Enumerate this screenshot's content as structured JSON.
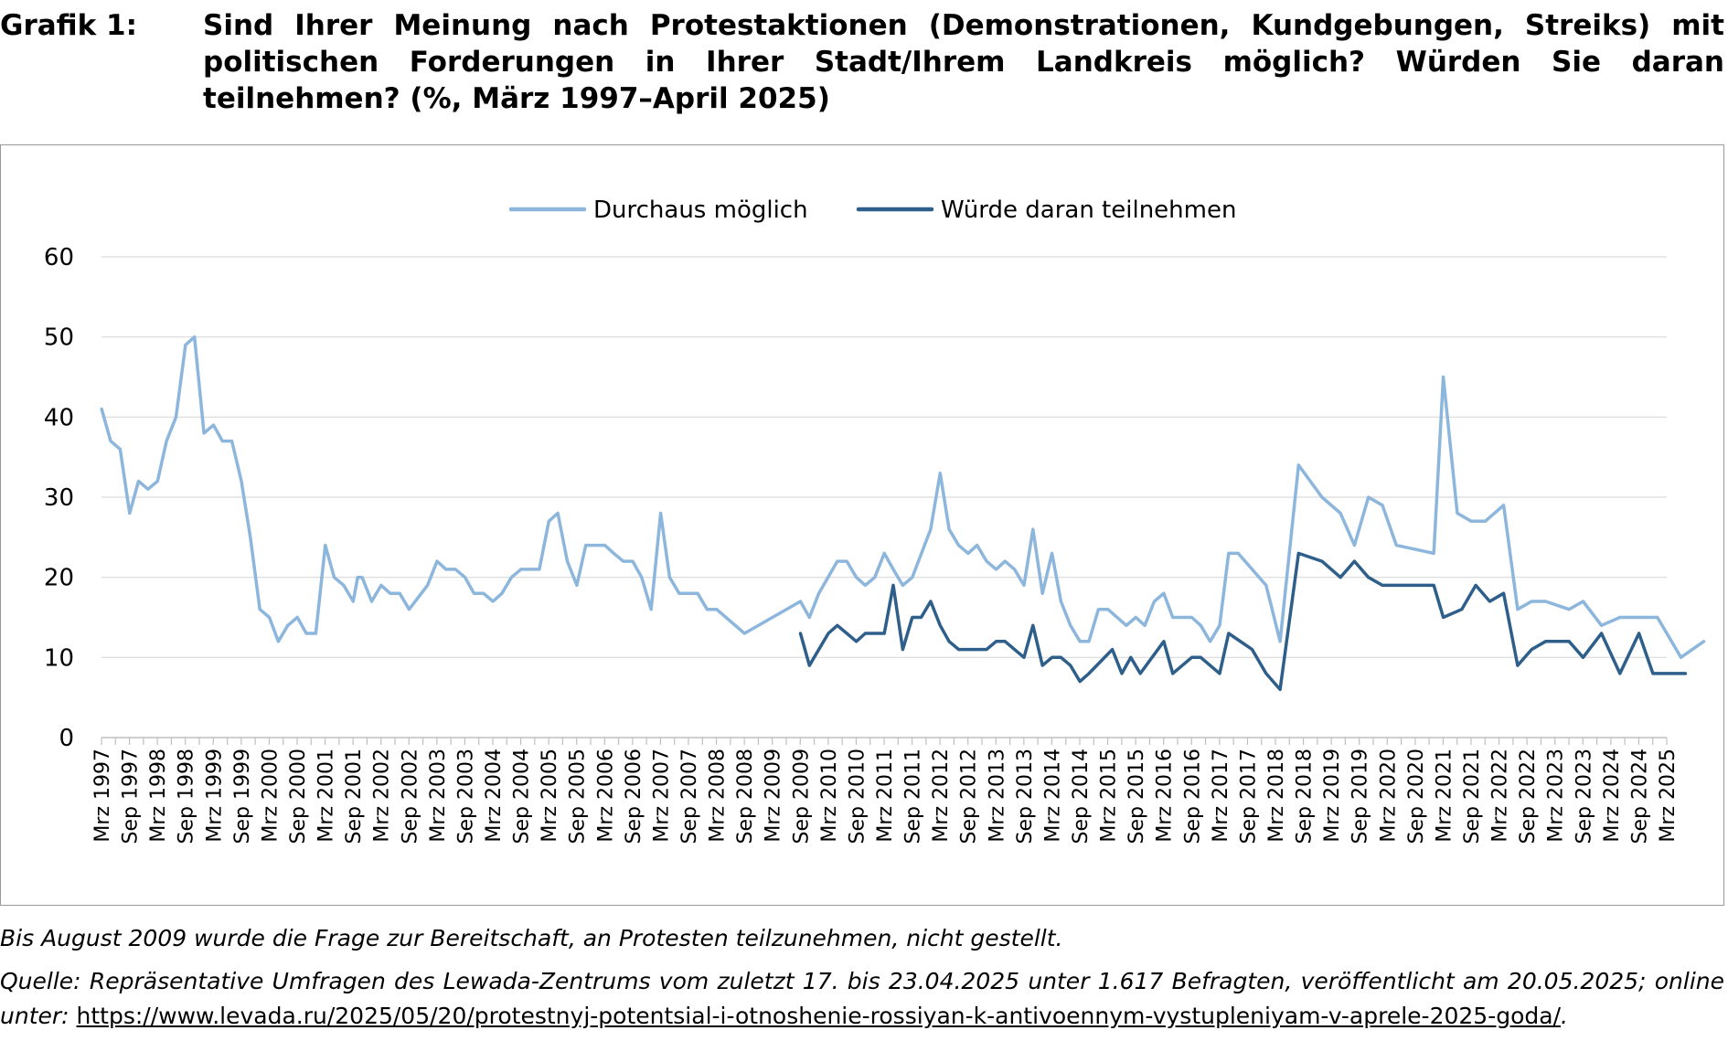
{
  "header": {
    "label": "Grafik 1:",
    "title": "Sind Ihrer Meinung nach Protestaktionen (Demonstrationen, Kundgebungen, Streiks) mit politischen Forderungen in Ihrer Stadt/Ihrem Landkreis möglich? Würden Sie daran teilnehmen? (%, März 1997–April 2025)"
  },
  "footer": {
    "note": "Bis August 2009 wurde die Frage zur Bereitschaft, an Protesten teilzunehmen, nicht gestellt.",
    "source_prefix": "Quelle: Repräsentative Umfragen des Lewada-Zentrums vom zuletzt 17. bis 23.04.2025 unter 1.617 Befragten, veröffentlicht am 20.05.2025; online unter: ",
    "source_link": "https://www.levada.ru/2025/05/20/protestnyj-potentsial-i-otnoshenie-rossiyan-k-antivoennym-vystupleniyam-v-aprele-2025-goda/",
    "source_suffix": "."
  },
  "chart_data": {
    "type": "line",
    "title": "",
    "xlabel": "",
    "ylabel": "",
    "ylim": [
      0,
      60
    ],
    "yticks": [
      0,
      10,
      20,
      30,
      40,
      50,
      60
    ],
    "grid": true,
    "legend_position": "top-center",
    "x_domain": [
      1997.167,
      2025.167
    ],
    "tick_labels": [
      "Mrz 1997",
      "Sep 1997",
      "Mrz 1998",
      "Sep 1998",
      "Mrz 1999",
      "Sep 1999",
      "Mrz 2000",
      "Sep 2000",
      "Mrz 2001",
      "Sep 2001",
      "Mrz 2002",
      "Sep 2002",
      "Mrz 2003",
      "Sep 2003",
      "Mrz 2004",
      "Sep 2004",
      "Mrz 2005",
      "Sep 2005",
      "Mrz 2006",
      "Sep 2006",
      "Mrz 2007",
      "Sep 2007",
      "Mrz 2008",
      "Sep 2008",
      "Mrz 2009",
      "Sep 2009",
      "Mrz 2010",
      "Sep 2010",
      "Mrz 2011",
      "Sep 2011",
      "Mrz 2012",
      "Sep 2012",
      "Mrz 2013",
      "Sep 2013",
      "Mrz 2014",
      "Sep 2014",
      "Mrz 2015",
      "Sep 2015",
      "Mrz 2016",
      "Sep 2016",
      "Mrz 2017",
      "Sep 2017",
      "Mrz 2018",
      "Sep 2018",
      "Mrz 2019",
      "Sep 2019",
      "Mrz 2020",
      "Sep 2020",
      "Mrz 2021",
      "Sep 2021",
      "Mrz 2022",
      "Sep 2022",
      "Mrz 2023",
      "Sep 2023",
      "Mrz 2024",
      "Sep 2024",
      "Mrz 2025"
    ],
    "series": [
      {
        "name": "Durchaus möglich",
        "color": "#8db6dc",
        "points": [
          [
            1997.17,
            41
          ],
          [
            1997.33,
            37
          ],
          [
            1997.5,
            36
          ],
          [
            1997.67,
            28
          ],
          [
            1997.83,
            32
          ],
          [
            1998.0,
            31
          ],
          [
            1998.17,
            32
          ],
          [
            1998.33,
            37
          ],
          [
            1998.5,
            40
          ],
          [
            1998.67,
            49
          ],
          [
            1998.83,
            50
          ],
          [
            1999.0,
            38
          ],
          [
            1999.17,
            39
          ],
          [
            1999.33,
            37
          ],
          [
            1999.5,
            37
          ],
          [
            1999.67,
            32
          ],
          [
            1999.83,
            25
          ],
          [
            2000.0,
            16
          ],
          [
            2000.17,
            15
          ],
          [
            2000.33,
            12
          ],
          [
            2000.5,
            14
          ],
          [
            2000.67,
            15
          ],
          [
            2000.83,
            13
          ],
          [
            2001.0,
            13
          ],
          [
            2001.17,
            24
          ],
          [
            2001.33,
            20
          ],
          [
            2001.5,
            19
          ],
          [
            2001.67,
            17
          ],
          [
            2001.75,
            20
          ],
          [
            2001.83,
            20
          ],
          [
            2002.0,
            17
          ],
          [
            2002.17,
            19
          ],
          [
            2002.33,
            18
          ],
          [
            2002.5,
            18
          ],
          [
            2002.67,
            16
          ],
          [
            2003.0,
            19
          ],
          [
            2003.17,
            22
          ],
          [
            2003.33,
            21
          ],
          [
            2003.5,
            21
          ],
          [
            2003.67,
            20
          ],
          [
            2003.83,
            18
          ],
          [
            2004.0,
            18
          ],
          [
            2004.17,
            17
          ],
          [
            2004.33,
            18
          ],
          [
            2004.5,
            20
          ],
          [
            2004.67,
            21
          ],
          [
            2004.83,
            21
          ],
          [
            2005.0,
            21
          ],
          [
            2005.17,
            27
          ],
          [
            2005.33,
            28
          ],
          [
            2005.5,
            22
          ],
          [
            2005.67,
            19
          ],
          [
            2005.83,
            24
          ],
          [
            2006.0,
            24
          ],
          [
            2006.17,
            24
          ],
          [
            2006.33,
            23
          ],
          [
            2006.5,
            22
          ],
          [
            2006.67,
            22
          ],
          [
            2006.83,
            20
          ],
          [
            2007.0,
            16
          ],
          [
            2007.17,
            28
          ],
          [
            2007.33,
            20
          ],
          [
            2007.5,
            18
          ],
          [
            2007.67,
            18
          ],
          [
            2007.83,
            18
          ],
          [
            2008.0,
            16
          ],
          [
            2008.17,
            16
          ],
          [
            2008.67,
            13
          ],
          [
            2009.67,
            17
          ],
          [
            2009.83,
            15
          ],
          [
            2010.0,
            18
          ],
          [
            2010.33,
            22
          ],
          [
            2010.5,
            22
          ],
          [
            2010.67,
            20
          ],
          [
            2010.83,
            19
          ],
          [
            2011.0,
            20
          ],
          [
            2011.17,
            23
          ],
          [
            2011.33,
            21
          ],
          [
            2011.5,
            19
          ],
          [
            2011.67,
            20
          ],
          [
            2012.0,
            26
          ],
          [
            2012.17,
            33
          ],
          [
            2012.33,
            26
          ],
          [
            2012.5,
            24
          ],
          [
            2012.67,
            23
          ],
          [
            2012.83,
            24
          ],
          [
            2013.0,
            22
          ],
          [
            2013.17,
            21
          ],
          [
            2013.33,
            22
          ],
          [
            2013.5,
            21
          ],
          [
            2013.67,
            19
          ],
          [
            2013.83,
            26
          ],
          [
            2014.0,
            18
          ],
          [
            2014.17,
            23
          ],
          [
            2014.33,
            17
          ],
          [
            2014.5,
            14
          ],
          [
            2014.67,
            12
          ],
          [
            2014.83,
            12
          ],
          [
            2015.0,
            16
          ],
          [
            2015.17,
            16
          ],
          [
            2015.5,
            14
          ],
          [
            2015.67,
            15
          ],
          [
            2015.83,
            14
          ],
          [
            2016.0,
            17
          ],
          [
            2016.17,
            18
          ],
          [
            2016.33,
            15
          ],
          [
            2016.67,
            15
          ],
          [
            2016.83,
            14
          ],
          [
            2017.0,
            12
          ],
          [
            2017.17,
            14
          ],
          [
            2017.33,
            23
          ],
          [
            2017.5,
            23
          ],
          [
            2018.0,
            19
          ],
          [
            2018.25,
            12
          ],
          [
            2018.58,
            34
          ],
          [
            2019.0,
            30
          ],
          [
            2019.33,
            28
          ],
          [
            2019.58,
            24
          ],
          [
            2019.83,
            30
          ],
          [
            2020.08,
            29
          ],
          [
            2020.33,
            24
          ],
          [
            2021.0,
            23
          ],
          [
            2021.17,
            45
          ],
          [
            2021.42,
            28
          ],
          [
            2021.67,
            27
          ],
          [
            2021.92,
            27
          ],
          [
            2022.25,
            29
          ],
          [
            2022.5,
            16
          ],
          [
            2022.75,
            17
          ],
          [
            2023.0,
            17
          ],
          [
            2023.42,
            16
          ],
          [
            2023.67,
            17
          ],
          [
            2024.0,
            14
          ],
          [
            2024.33,
            15
          ],
          [
            2024.83,
            15
          ],
          [
            2025.0,
            15
          ],
          [
            2025.42,
            10
          ],
          [
            2025.83,
            12
          ]
        ]
      },
      {
        "name": "Würde daran teilnehmen",
        "color": "#2e5f8a",
        "points": [
          [
            2009.67,
            13
          ],
          [
            2009.83,
            9
          ],
          [
            2010.17,
            13
          ],
          [
            2010.33,
            14
          ],
          [
            2010.5,
            13
          ],
          [
            2010.67,
            12
          ],
          [
            2010.83,
            13
          ],
          [
            2011.17,
            13
          ],
          [
            2011.33,
            19
          ],
          [
            2011.5,
            11
          ],
          [
            2011.67,
            15
          ],
          [
            2011.83,
            15
          ],
          [
            2012.0,
            17
          ],
          [
            2012.17,
            14
          ],
          [
            2012.33,
            12
          ],
          [
            2012.5,
            11
          ],
          [
            2013.0,
            11
          ],
          [
            2013.17,
            12
          ],
          [
            2013.33,
            12
          ],
          [
            2013.5,
            11
          ],
          [
            2013.67,
            10
          ],
          [
            2013.83,
            14
          ],
          [
            2014.0,
            9
          ],
          [
            2014.17,
            10
          ],
          [
            2014.33,
            10
          ],
          [
            2014.5,
            9
          ],
          [
            2014.67,
            7
          ],
          [
            2014.83,
            8
          ],
          [
            2015.25,
            11
          ],
          [
            2015.42,
            8
          ],
          [
            2015.58,
            10
          ],
          [
            2015.75,
            8
          ],
          [
            2016.17,
            12
          ],
          [
            2016.33,
            8
          ],
          [
            2016.67,
            10
          ],
          [
            2016.83,
            10
          ],
          [
            2017.17,
            8
          ],
          [
            2017.33,
            13
          ],
          [
            2017.75,
            11
          ],
          [
            2018.0,
            8
          ],
          [
            2018.25,
            6
          ],
          [
            2018.58,
            23
          ],
          [
            2019.0,
            22
          ],
          [
            2019.33,
            20
          ],
          [
            2019.58,
            22
          ],
          [
            2019.83,
            20
          ],
          [
            2020.08,
            19
          ],
          [
            2021.0,
            19
          ],
          [
            2021.17,
            15
          ],
          [
            2021.5,
            16
          ],
          [
            2021.75,
            19
          ],
          [
            2022.0,
            17
          ],
          [
            2022.25,
            18
          ],
          [
            2022.5,
            9
          ],
          [
            2022.75,
            11
          ],
          [
            2023.0,
            12
          ],
          [
            2023.42,
            12
          ],
          [
            2023.67,
            10
          ],
          [
            2024.0,
            13
          ],
          [
            2024.33,
            8
          ],
          [
            2024.67,
            13
          ],
          [
            2024.92,
            8
          ],
          [
            2025.5,
            8
          ]
        ]
      }
    ]
  }
}
